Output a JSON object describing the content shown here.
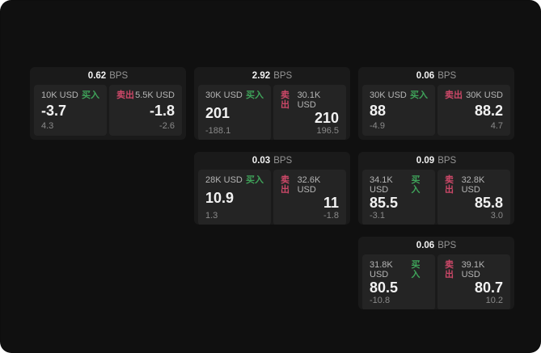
{
  "labels": {
    "bps_unit": "BPS",
    "buy": "买入",
    "sell": "卖出"
  },
  "colors": {
    "page_bg": "#101010",
    "card_bg": "#1a1a1a",
    "panel_bg": "#242424",
    "buy_green": "#3fa35a",
    "sell_red": "#cc4868"
  },
  "cards": [
    {
      "bps": "0.62",
      "buy": {
        "notional": "10K USD",
        "price": "-3.7",
        "sub": "4.3"
      },
      "sell": {
        "notional": "5.5K USD",
        "price": "-1.8",
        "sub": "-2.6"
      }
    },
    {
      "bps": "2.92",
      "buy": {
        "notional": "30K USD",
        "price": "201",
        "sub": "-188.1"
      },
      "sell": {
        "notional": "30.1K USD",
        "price": "210",
        "sub": "196.5"
      }
    },
    {
      "bps": "0.06",
      "buy": {
        "notional": "30K USD",
        "price": "88",
        "sub": "-4.9"
      },
      "sell": {
        "notional": "30K USD",
        "price": "88.2",
        "sub": "4.7"
      }
    },
    {
      "bps": "0.03",
      "buy": {
        "notional": "28K USD",
        "price": "10.9",
        "sub": "1.3"
      },
      "sell": {
        "notional": "32.6K USD",
        "price": "11",
        "sub": "-1.8"
      }
    },
    {
      "bps": "0.09",
      "buy": {
        "notional": "34.1K USD",
        "price": "85.5",
        "sub": "-3.1"
      },
      "sell": {
        "notional": "32.8K USD",
        "price": "85.8",
        "sub": "3.0"
      }
    },
    {
      "bps": "0.06",
      "buy": {
        "notional": "31.8K USD",
        "price": "80.5",
        "sub": "-10.8"
      },
      "sell": {
        "notional": "39.1K USD",
        "price": "80.7",
        "sub": "10.2"
      }
    }
  ]
}
